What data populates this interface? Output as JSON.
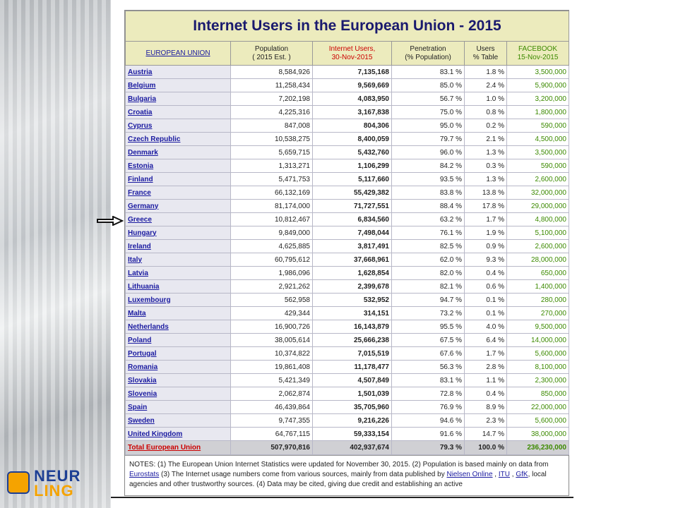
{
  "logo": [
    "NEUR",
    "LING"
  ],
  "table": {
    "title": "Internet Users in the European Union - 2015",
    "header": [
      [
        "EUROPEAN UNION"
      ],
      [
        "Population",
        "( 2015 Est. )"
      ],
      [
        "Internet Users,",
        "30-Nov-2015"
      ],
      [
        "Penetration",
        "(% Population)"
      ],
      [
        "Users",
        "% Table"
      ],
      [
        "FACEBOOK",
        "15-Nov-2015"
      ]
    ],
    "rows": [
      [
        "Austria",
        "8,584,926",
        "7,135,168",
        "83.1 %",
        "1.8 %",
        "3,500,000"
      ],
      [
        "Belgium",
        "11,258,434",
        "9,569,669",
        "85.0 %",
        "2.4 %",
        "5,900,000"
      ],
      [
        "Bulgaria",
        "7,202,198",
        "4,083,950",
        "56.7 %",
        "1.0 %",
        "3,200,000"
      ],
      [
        "Croatia",
        "4,225,316",
        "3,167,838",
        "75.0 %",
        "0.8 %",
        "1,800,000"
      ],
      [
        "Cyprus",
        "847,008",
        "804,306",
        "95.0 %",
        "0.2 %",
        "590,000"
      ],
      [
        "Czech Republic",
        "10,538,275",
        "8,400,059",
        "79.7 %",
        "2.1 %",
        "4,500,000"
      ],
      [
        "Denmark",
        "5,659,715",
        "5,432,760",
        "96.0 %",
        "1.3 %",
        "3,500,000"
      ],
      [
        "Estonia",
        "1,313,271",
        "1,106,299",
        "84.2 %",
        "0.3 %",
        "590,000"
      ],
      [
        "Finland",
        "5,471,753",
        "5,117,660",
        "93.5 %",
        "1.3 %",
        "2,600,000"
      ],
      [
        "France",
        "66,132,169",
        "55,429,382",
        "83.8 %",
        "13.8 %",
        "32,000,000"
      ],
      [
        "Germany",
        "81,174,000",
        "71,727,551",
        "88.4 %",
        "17.8 %",
        "29,000,000"
      ],
      [
        "Greece",
        "10,812,467",
        "6,834,560",
        "63.2 %",
        "1.7 %",
        "4,800,000"
      ],
      [
        "Hungary",
        "9,849,000",
        "7,498,044",
        "76.1 %",
        "1.9 %",
        "5,100,000"
      ],
      [
        "Ireland",
        "4,625,885",
        "3,817,491",
        "82.5 %",
        "0.9 %",
        "2,600,000"
      ],
      [
        "Italy",
        "60,795,612",
        "37,668,961",
        "62.0 %",
        "9.3 %",
        "28,000,000"
      ],
      [
        "Latvia",
        "1,986,096",
        "1,628,854",
        "82.0 %",
        "0.4 %",
        "650,000"
      ],
      [
        "Lithuania",
        "2,921,262",
        "2,399,678",
        "82.1 %",
        "0.6 %",
        "1,400,000"
      ],
      [
        "Luxembourg",
        "562,958",
        "532,952",
        "94.7 %",
        "0.1 %",
        "280,000"
      ],
      [
        "Malta",
        "429,344",
        "314,151",
        "73.2 %",
        "0.1 %",
        "270,000"
      ],
      [
        "Netherlands",
        "16,900,726",
        "16,143,879",
        "95.5 %",
        "4.0 %",
        "9,500,000"
      ],
      [
        "Poland",
        "38,005,614",
        "25,666,238",
        "67.5 %",
        "6.4 %",
        "14,000,000"
      ],
      [
        "Portugal",
        "10,374,822",
        "7,015,519",
        "67.6 %",
        "1.7 %",
        "5,600,000"
      ],
      [
        "Romania",
        "19,861,408",
        "11,178,477",
        "56.3 %",
        "2.8 %",
        "8,100,000"
      ],
      [
        "Slovakia",
        "5,421,349",
        "4,507,849",
        "83.1 %",
        "1.1 %",
        "2,300,000"
      ],
      [
        "Slovenia",
        "2,062,874",
        "1,501,039",
        "72.8 %",
        "0.4 %",
        "850,000"
      ],
      [
        "Spain",
        "46,439,864",
        "35,705,960",
        "76.9 %",
        "8.9 %",
        "22,000,000"
      ],
      [
        "Sweden",
        "9,747,355",
        "9,216,226",
        "94.6 %",
        "2.3 %",
        "5,600,000"
      ],
      [
        "United Kingdom",
        "64,767,115",
        "59,333,154",
        "91.6 %",
        "14.7 %",
        "38,000,000"
      ]
    ],
    "total": [
      "Total European Union",
      "507,970,816",
      "402,937,674",
      "79.3 %",
      "100.0 %",
      "236,230,000"
    ],
    "notes": [
      {
        "text": "NOTES: (1) The European Union Internet Statistics were updated for November 30, 2015. (2) Population is based mainly on data from ",
        "link": false
      },
      {
        "text": "Eurostats",
        "link": true
      },
      {
        "text": " (3) The Internet usage numbers come from various sources, mainly from data published by ",
        "link": false
      },
      {
        "text": "Nielsen Online",
        "link": true
      },
      {
        "text": " , ",
        "link": false
      },
      {
        "text": "ITU",
        "link": true
      },
      {
        "text": " , ",
        "link": false
      },
      {
        "text": "GfK",
        "link": true
      },
      {
        "text": ", local agencies and other trustworthy sources. (4) Data may be cited, giving due credit and establishing an active",
        "link": false
      }
    ]
  }
}
